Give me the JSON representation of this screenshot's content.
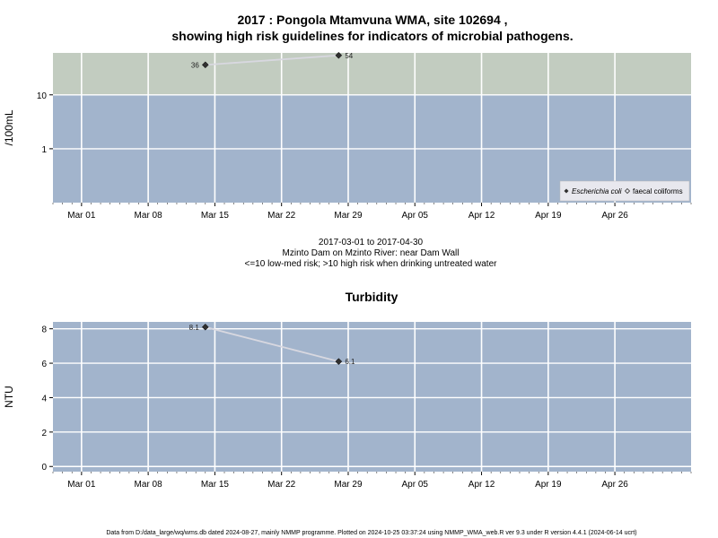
{
  "header": {
    "title_line1": "2017 : Pongola Mtamvuna WMA, site 102694 ,",
    "title_line2": "showing high risk guidelines for indicators of microbial pathogens."
  },
  "subtitle": {
    "line1": "2017-03-01 to 2017-04-30",
    "line2": "Mzinto Dam on Mzinto River: near Dam Wall",
    "line3": "<=10 low-med risk; >10 high risk when drinking untreated water"
  },
  "footer": {
    "text": "Data from D:/data_large/wq/wms.db dated 2024-08-27, mainly NMMP programme. Plotted on 2024-10-25 03:37:24 using NMMP_WMA_web.R ver 9.3 under R version 4.4.1 (2024-06-14 ucrt)"
  },
  "colors": {
    "panel_blue": "#a2b4cc",
    "high_risk_band": "#c2ccc0",
    "grid": "#ffffff",
    "series_line": "#d8d8e0",
    "marker": "#303030",
    "legend_bg": "#e8e8ee"
  },
  "chart_data": [
    {
      "type": "scatter",
      "title": "",
      "ylabel": "/100mL",
      "y_scale": "log",
      "ylim": [
        0.1,
        60
      ],
      "yticks": [
        1,
        10
      ],
      "ytick_labels": [
        "1",
        "10"
      ],
      "threshold": 10,
      "xlim": [
        "2017-02-26",
        "2017-05-04"
      ],
      "xticks": [
        "2017-03-01",
        "2017-03-08",
        "2017-03-15",
        "2017-03-22",
        "2017-03-29",
        "2017-04-05",
        "2017-04-12",
        "2017-04-19",
        "2017-04-26"
      ],
      "xtick_labels": [
        "Mar 01",
        "Mar 08",
        "Mar 15",
        "Mar 22",
        "Mar 29",
        "Apr 05",
        "Apr 12",
        "Apr 19",
        "Apr 26"
      ],
      "grid": true,
      "legend_position": "bottom-right",
      "series": [
        {
          "name": "Escherichia coli",
          "x": [
            "2017-03-14",
            "2017-03-28"
          ],
          "y": [
            36,
            54
          ],
          "labels": [
            "36",
            "54"
          ],
          "marker": "filled-diamond"
        },
        {
          "name": "faecal coliforms",
          "x": [],
          "y": [],
          "labels": [],
          "marker": "open-diamond"
        }
      ]
    },
    {
      "type": "scatter",
      "title": "Turbidity",
      "ylabel": "NTU",
      "y_scale": "linear",
      "ylim": [
        -0.3,
        8.4
      ],
      "yticks": [
        0,
        2,
        4,
        6,
        8
      ],
      "ytick_labels": [
        "0",
        "2",
        "4",
        "6",
        "8"
      ],
      "xlim": [
        "2017-02-26",
        "2017-05-04"
      ],
      "xticks": [
        "2017-03-01",
        "2017-03-08",
        "2017-03-15",
        "2017-03-22",
        "2017-03-29",
        "2017-04-05",
        "2017-04-12",
        "2017-04-19",
        "2017-04-26"
      ],
      "xtick_labels": [
        "Mar 01",
        "Mar 08",
        "Mar 15",
        "Mar 22",
        "Mar 29",
        "Apr 05",
        "Apr 12",
        "Apr 19",
        "Apr 26"
      ],
      "grid": true,
      "series": [
        {
          "name": "",
          "x": [
            "2017-03-14",
            "2017-03-28"
          ],
          "y": [
            8.1,
            6.1
          ],
          "labels": [
            "8.1",
            "6.1"
          ],
          "marker": "filled-diamond"
        }
      ]
    }
  ]
}
